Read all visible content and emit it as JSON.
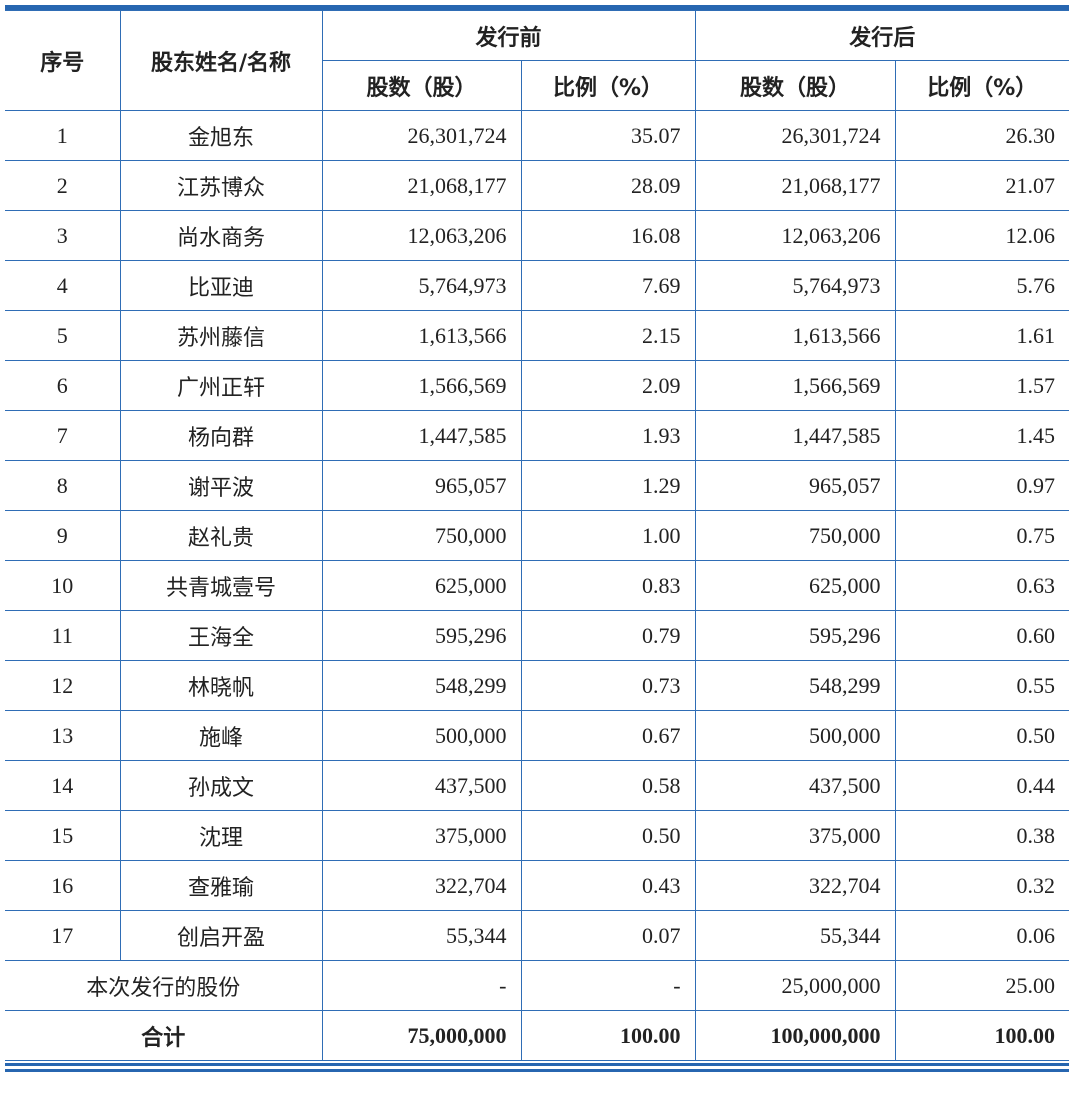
{
  "table": {
    "header": {
      "seq": "序号",
      "name": "股东姓名/名称",
      "before": "发行前",
      "after": "发行后",
      "before_shares": "股数（股）",
      "before_ratio": "比例（%）",
      "after_shares": "股数（股）",
      "after_ratio": "比例（%）"
    },
    "rows": [
      [
        "1",
        "金旭东",
        "26,301,724",
        "35.07",
        "26,301,724",
        "26.30"
      ],
      [
        "2",
        "江苏博众",
        "21,068,177",
        "28.09",
        "21,068,177",
        "21.07"
      ],
      [
        "3",
        "尚水商务",
        "12,063,206",
        "16.08",
        "12,063,206",
        "12.06"
      ],
      [
        "4",
        "比亚迪",
        "5,764,973",
        "7.69",
        "5,764,973",
        "5.76"
      ],
      [
        "5",
        "苏州藤信",
        "1,613,566",
        "2.15",
        "1,613,566",
        "1.61"
      ],
      [
        "6",
        "广州正轩",
        "1,566,569",
        "2.09",
        "1,566,569",
        "1.57"
      ],
      [
        "7",
        "杨向群",
        "1,447,585",
        "1.93",
        "1,447,585",
        "1.45"
      ],
      [
        "8",
        "谢平波",
        "965,057",
        "1.29",
        "965,057",
        "0.97"
      ],
      [
        "9",
        "赵礼贵",
        "750,000",
        "1.00",
        "750,000",
        "0.75"
      ],
      [
        "10",
        "共青城壹号",
        "625,000",
        "0.83",
        "625,000",
        "0.63"
      ],
      [
        "11",
        "王海全",
        "595,296",
        "0.79",
        "595,296",
        "0.60"
      ],
      [
        "12",
        "林晓帆",
        "548,299",
        "0.73",
        "548,299",
        "0.55"
      ],
      [
        "13",
        "施峰",
        "500,000",
        "0.67",
        "500,000",
        "0.50"
      ],
      [
        "14",
        "孙成文",
        "437,500",
        "0.58",
        "437,500",
        "0.44"
      ],
      [
        "15",
        "沈理",
        "375,000",
        "0.50",
        "375,000",
        "0.38"
      ],
      [
        "16",
        "查雅瑜",
        "322,704",
        "0.43",
        "322,704",
        "0.32"
      ],
      [
        "17",
        "创启开盈",
        "55,344",
        "0.07",
        "55,344",
        "0.06"
      ]
    ],
    "issue_row": {
      "label": "本次发行的股份",
      "values": [
        "-",
        "-",
        "25,000,000",
        "25.00"
      ]
    },
    "total_row": {
      "label": "合计",
      "values": [
        "75,000,000",
        "100.00",
        "100,000,000",
        "100.00"
      ]
    }
  }
}
